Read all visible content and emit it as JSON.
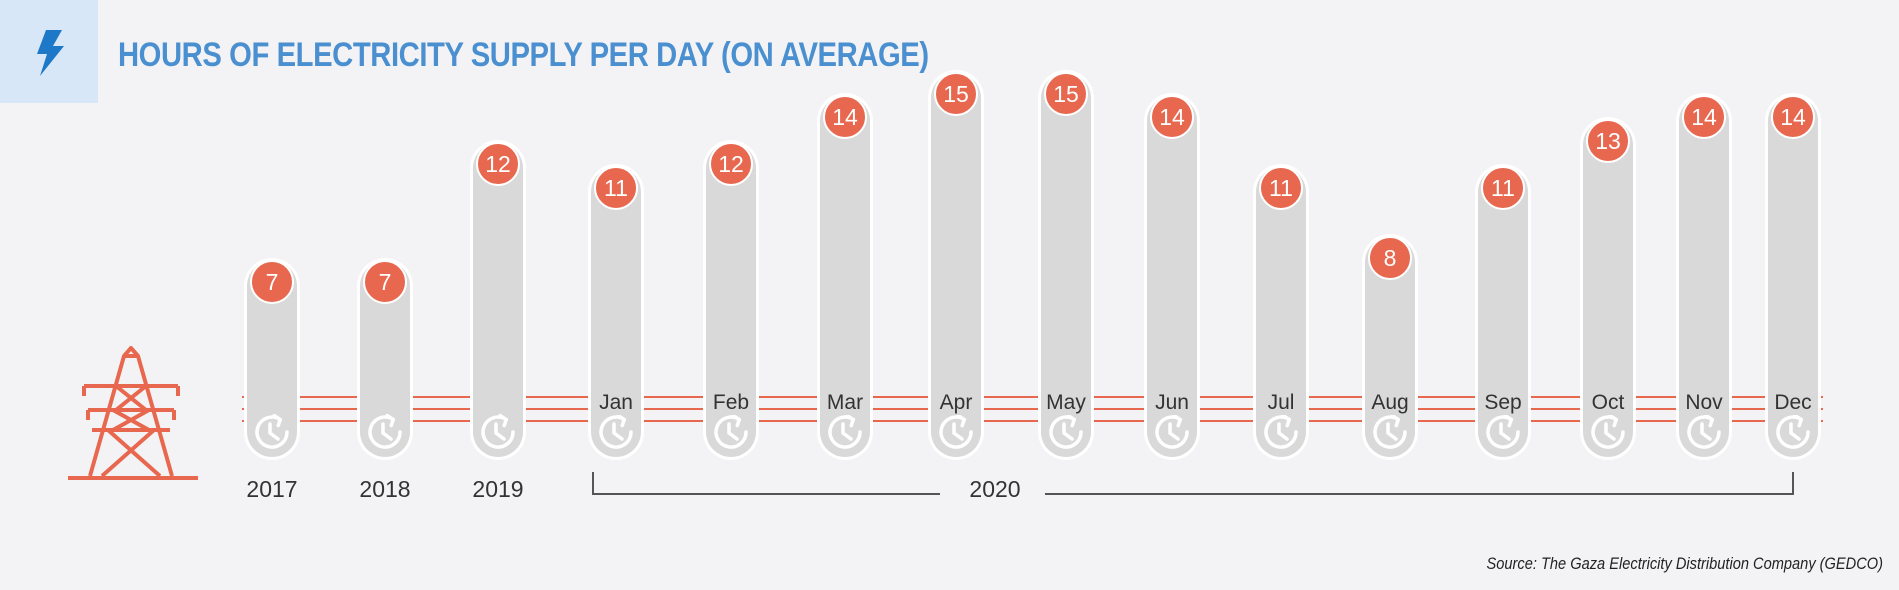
{
  "header": {
    "title": "HOURS OF ELECTRICITY SUPPLY PER DAY (ON AVERAGE)",
    "icon": "lightning-bolt-icon"
  },
  "source": "Source: The Gaza Electricity Distribution Company (GEDCO)",
  "colors": {
    "accent": "#e8674f",
    "title": "#4a8fd0",
    "bar": "#d9d9d9",
    "icon_box": "#d7e7f7"
  },
  "icons": [
    "electricity-pylon-icon",
    "clock-icon"
  ],
  "chart_data": {
    "type": "bar",
    "title": "HOURS OF ELECTRICITY SUPPLY PER DAY (ON AVERAGE)",
    "ylabel": "",
    "ylim": [
      0,
      15
    ],
    "categories": [
      "2017",
      "2018",
      "2019",
      "Jan",
      "Feb",
      "Mar",
      "Apr",
      "May",
      "Jun",
      "Jul",
      "Aug",
      "Sep",
      "Oct",
      "Nov",
      "Dec"
    ],
    "values": [
      7,
      7,
      12,
      11,
      12,
      14,
      15,
      15,
      14,
      11,
      8,
      11,
      13,
      14,
      14
    ],
    "group_label": "2020"
  }
}
